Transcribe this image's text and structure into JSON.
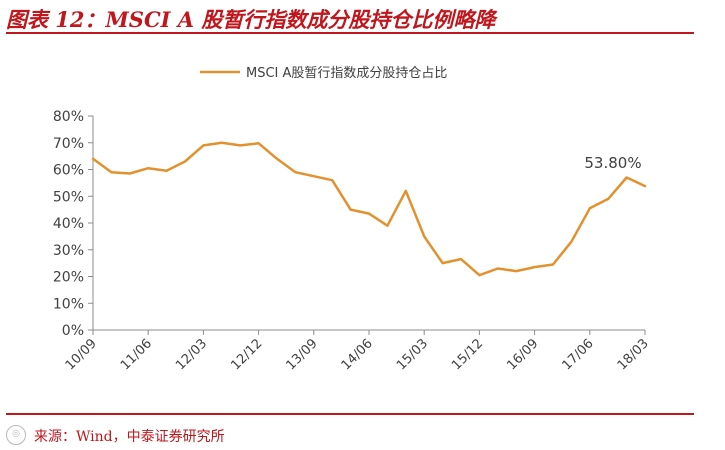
{
  "header": {
    "figure_title": "图表 12：MSCI A 股暂行指数成分股持仓比例略降"
  },
  "footer": {
    "source": "来源：Wind，中泰证券研究所"
  },
  "chart_data": {
    "type": "line",
    "title": "",
    "xlabel": "",
    "ylabel": "",
    "legend": {
      "position": "top-center"
    },
    "grid": false,
    "line_color": "#e3912e",
    "ylim": [
      0,
      80
    ],
    "yticks": [
      "0%",
      "10%",
      "20%",
      "30%",
      "40%",
      "50%",
      "60%",
      "70%",
      "80%"
    ],
    "xticks": [
      {
        "label": "10/09",
        "index": 0
      },
      {
        "label": "11/06",
        "index": 3
      },
      {
        "label": "12/03",
        "index": 6
      },
      {
        "label": "12/12",
        "index": 9
      },
      {
        "label": "13/09",
        "index": 12
      },
      {
        "label": "14/06",
        "index": 15
      },
      {
        "label": "15/03",
        "index": 18
      },
      {
        "label": "15/12",
        "index": 21
      },
      {
        "label": "16/09",
        "index": 24
      },
      {
        "label": "17/06",
        "index": 27
      },
      {
        "label": "18/03",
        "index": 30
      }
    ],
    "series": [
      {
        "name": "MSCI A股暂行指数成分股持仓占比",
        "values": [
          64,
          59,
          58.5,
          60.5,
          59.5,
          63,
          69,
          70,
          69,
          69.8,
          64,
          59,
          57.5,
          56,
          45,
          43.5,
          39,
          52,
          35,
          25,
          26.5,
          20.5,
          23,
          22,
          23.5,
          24.5,
          33,
          45.5,
          49,
          57,
          53.8
        ]
      }
    ],
    "annotations": [
      {
        "text": "53.80%",
        "index": 30
      }
    ]
  }
}
